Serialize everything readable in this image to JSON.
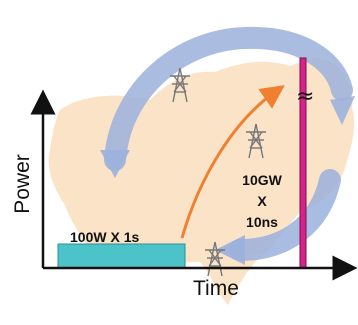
{
  "y_axis_label": "Power",
  "x_axis_label": "Time",
  "low_power_pulse": {
    "label": "100W X 1s"
  },
  "high_power_pulse": {
    "label_lines": [
      "10GW",
      "X",
      "10ns"
    ]
  },
  "axis_break_symbol": "≈",
  "colors": {
    "low_pulse_fill": "#4cc3c9",
    "high_pulse_fill": "#d6238b",
    "rise_arrow": "#f08030",
    "cycle_arrows": "#9bb1dc",
    "map": "#fbe3c8",
    "axes": "#111111"
  }
}
